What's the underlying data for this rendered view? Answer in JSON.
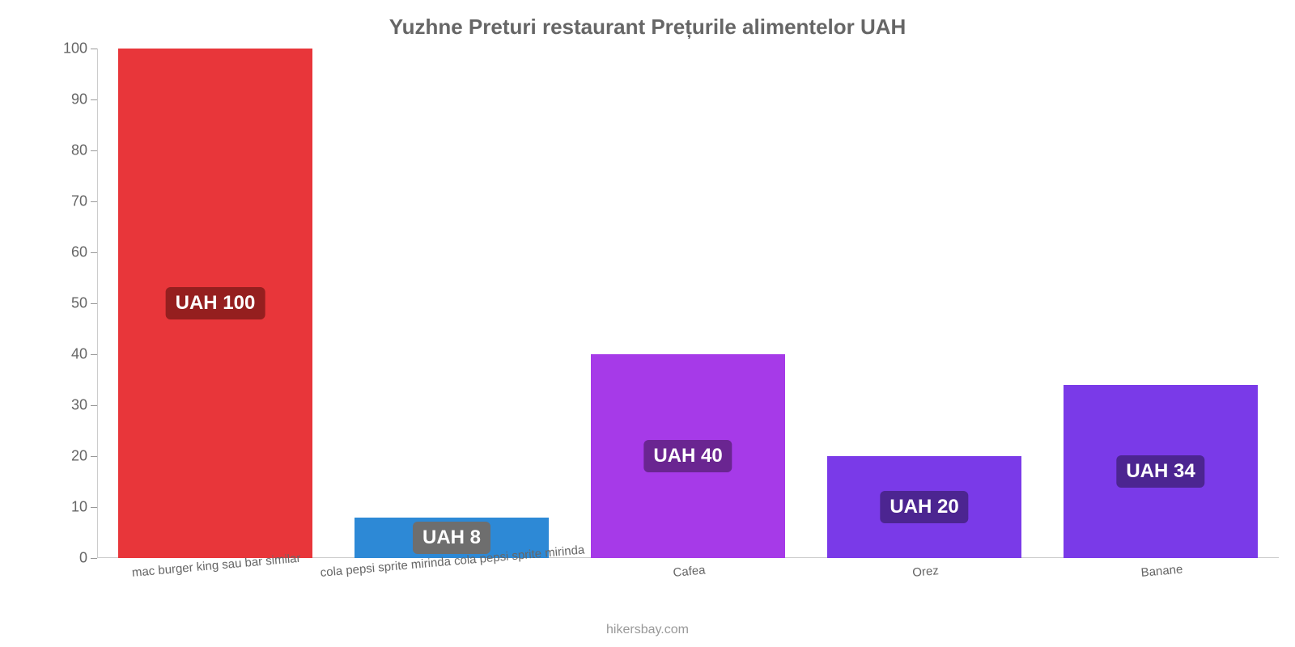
{
  "chart": {
    "type": "bar",
    "title": "Yuzhne Preturi restaurant Prețurile alimentelor UAH",
    "title_color": "#666666",
    "title_fontsize": 26,
    "attribution": "hikersbay.com",
    "attribution_color": "#999999",
    "attribution_fontsize": 16,
    "background_color": "#ffffff",
    "ylim": [
      0,
      100
    ],
    "yticks": [
      0,
      10,
      20,
      30,
      40,
      50,
      60,
      70,
      80,
      90,
      100
    ],
    "ytick_color": "#666666",
    "ytick_fontsize": 18,
    "xcat_color": "#666666",
    "xcat_fontsize": 15,
    "xcat_rotation_deg": -5,
    "bar_width_ratio": 0.82,
    "value_label_fontsize": 24,
    "categories": [
      "mac burger king sau bar similar",
      "cola pepsi sprite mirinda cola pepsi sprite mirinda",
      "Cafea",
      "Orez",
      "Banane"
    ],
    "values": [
      100,
      8,
      40,
      20,
      34
    ],
    "value_labels": [
      "UAH 100",
      "UAH 8",
      "UAH 40",
      "UAH 20",
      "UAH 34"
    ],
    "bar_colors": [
      "#e8363a",
      "#2d89d6",
      "#a63ae8",
      "#7a3ae8",
      "#7a3ae8"
    ],
    "badge_colors": [
      "#951f1f",
      "#6e6e6e",
      "#6a2591",
      "#4c2591",
      "#4c2591"
    ],
    "badge_text_color": "#ffffff"
  }
}
